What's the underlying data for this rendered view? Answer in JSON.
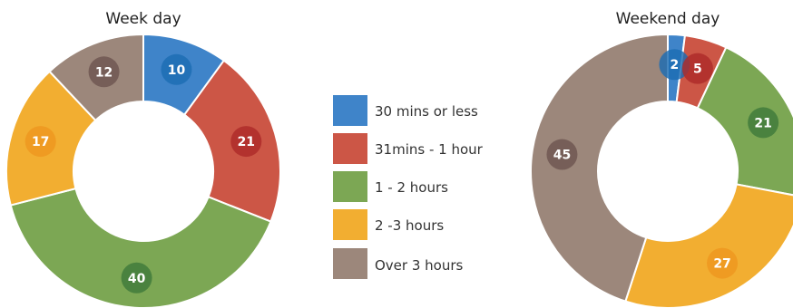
{
  "colors": {
    "blue": "#3f84c9",
    "red": "#cc5646",
    "green": "#7ca754",
    "yellow": "#f2ae31",
    "brown": "#9c877b",
    "blue_dark": "#1c6cb3",
    "red_dark": "#ad2b2a",
    "green_dark": "#3f7a3b",
    "yellow_dark": "#ee9720",
    "brown_dark": "#6e5650"
  },
  "legend": {
    "items": [
      {
        "label": "30 mins or less",
        "color": "#3f84c9"
      },
      {
        "label": "31mins - 1 hour",
        "color": "#cc5646"
      },
      {
        "label": "1 - 2 hours",
        "color": "#7ca754"
      },
      {
        "label": "2 -3 hours",
        "color": "#f2ae31"
      },
      {
        "label": "Over 3 hours",
        "color": "#9c877b"
      }
    ]
  },
  "chart_data": [
    {
      "type": "pie",
      "variant": "donut",
      "title": "Week day",
      "categories": [
        "30 mins or less",
        "31mins - 1 hour",
        "1 - 2 hours",
        "2 -3 hours",
        "Over 3 hours"
      ],
      "values": [
        10,
        21,
        40,
        17,
        12
      ],
      "colors": [
        "#3f84c9",
        "#cc5646",
        "#7ca754",
        "#f2ae31",
        "#9c877b"
      ],
      "label_colors": [
        "#1c6cb3",
        "#ad2b2a",
        "#3f7a3b",
        "#ee9720",
        "#6e5650"
      ]
    },
    {
      "type": "pie",
      "variant": "donut",
      "title": "Weekend day",
      "categories": [
        "30 mins or less",
        "31mins - 1 hour",
        "1 - 2 hours",
        "2 -3 hours",
        "Over 3 hours"
      ],
      "values": [
        2,
        5,
        21,
        27,
        45
      ],
      "colors": [
        "#3f84c9",
        "#cc5646",
        "#7ca754",
        "#f2ae31",
        "#9c877b"
      ],
      "label_colors": [
        "#1c6cb3",
        "#ad2b2a",
        "#3f7a3b",
        "#ee9720",
        "#6e5650"
      ]
    }
  ]
}
